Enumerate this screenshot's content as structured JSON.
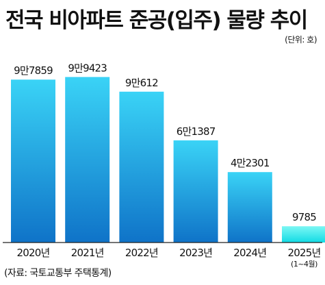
{
  "title": "전국 비아파트 준공(입주) 물량 추이",
  "unit_label": "(단위: 호)",
  "source": "(자료: 국토교통부 주택통계)",
  "colors": {
    "bar_top": "#3ad3f6",
    "bar_bottom": "#0f73c8",
    "last_bar_top": "#7cf7f4",
    "last_bar_bottom": "#12dbe4",
    "axis": "#222222",
    "text": "#111111"
  },
  "chart_data": {
    "type": "bar",
    "title": "전국 비아파트 준공(입주) 물량 추이",
    "unit": "(단위: 호)",
    "categories": [
      "2020년",
      "2021년",
      "2022년",
      "2023년",
      "2024년",
      "2025년"
    ],
    "category_notes": [
      "",
      "",
      "",
      "",
      "",
      "(1~4월)"
    ],
    "values": [
      97859,
      99423,
      90612,
      61387,
      42301,
      9785
    ],
    "value_labels": [
      "9만7859",
      "9만9423",
      "9만612",
      "6만1387",
      "4만2301",
      "9785"
    ],
    "ylim": [
      0,
      100000
    ],
    "grid": false,
    "legend": "none"
  }
}
